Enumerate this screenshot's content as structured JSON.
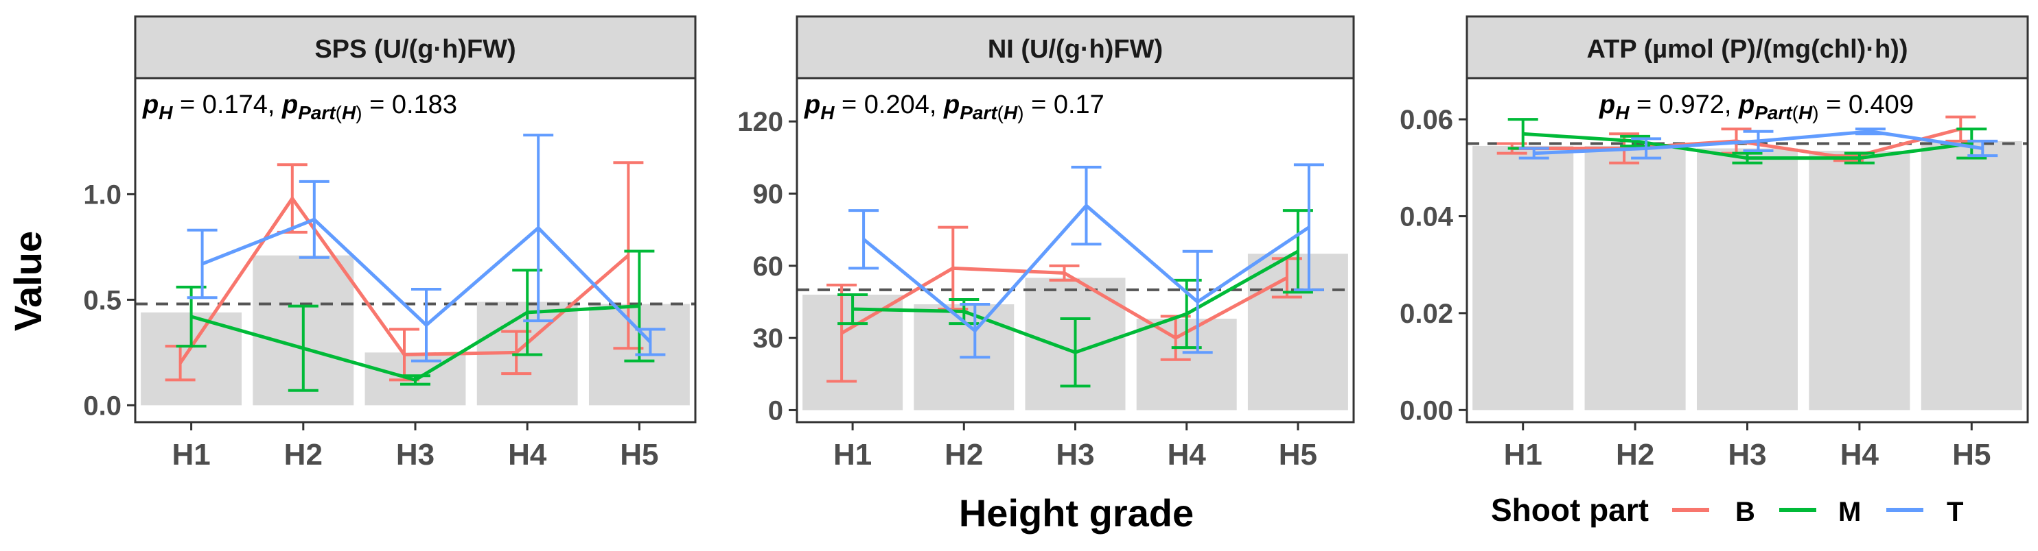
{
  "figure": {
    "ylabel": "Value",
    "xlabel": "Height grade",
    "legend": {
      "title": "Shoot part",
      "items": [
        {
          "label": "B",
          "color": "#F8766D"
        },
        {
          "label": "M",
          "color": "#00BA38"
        },
        {
          "label": "T",
          "color": "#619CFF"
        }
      ]
    },
    "colors": {
      "bar": "#D9D9D9",
      "reference_line": "#555555",
      "strip": "#D9D9D9",
      "axis_text": "#4D4D4D"
    }
  },
  "chart_data": [
    {
      "type": "bar",
      "title": "SPS (U/(g·h)FW)",
      "p_h": "0.174",
      "p_part": "0.183",
      "categories": [
        "H1",
        "H2",
        "H3",
        "H4",
        "H5"
      ],
      "ylim": [
        -0.08,
        1.55
      ],
      "yticks": [
        0.0,
        0.5,
        1.0
      ],
      "ytick_labels": [
        "0.0",
        "0.5",
        "1.0"
      ],
      "reference_line": 0.48,
      "bar_values": [
        0.44,
        0.71,
        0.25,
        0.49,
        0.48
      ],
      "series": [
        {
          "name": "B",
          "values": [
            0.2,
            0.98,
            0.24,
            0.25,
            0.71
          ],
          "errors": [
            0.08,
            0.16,
            0.12,
            0.1,
            0.44
          ]
        },
        {
          "name": "M",
          "values": [
            0.42,
            0.27,
            0.12,
            0.44,
            0.47
          ],
          "errors": [
            0.14,
            0.2,
            0.02,
            0.2,
            0.26
          ]
        },
        {
          "name": "T",
          "values": [
            0.67,
            0.88,
            0.38,
            0.84,
            0.3
          ],
          "errors": [
            0.16,
            0.18,
            0.17,
            0.44,
            0.06
          ]
        }
      ]
    },
    {
      "type": "bar",
      "title": "NI (U/(g·h)FW)",
      "p_h": "0.204",
      "p_part": "0.17",
      "categories": [
        "H1",
        "H2",
        "H3",
        "H4",
        "H5"
      ],
      "ylim": [
        -5,
        138
      ],
      "yticks": [
        0,
        30,
        60,
        90,
        120
      ],
      "ytick_labels": [
        "0",
        "30",
        "60",
        "90",
        "120"
      ],
      "reference_line": 50,
      "bar_values": [
        48,
        44,
        55,
        38,
        65
      ],
      "series": [
        {
          "name": "B",
          "values": [
            32,
            59,
            57,
            30,
            55
          ],
          "errors": [
            20,
            17,
            3,
            9,
            8
          ]
        },
        {
          "name": "M",
          "values": [
            42,
            41,
            24,
            40,
            66
          ],
          "errors": [
            6,
            5,
            14,
            14,
            17
          ]
        },
        {
          "name": "T",
          "values": [
            71,
            33,
            85,
            45,
            76
          ],
          "errors": [
            12,
            11,
            16,
            21,
            26
          ]
        }
      ]
    },
    {
      "type": "bar",
      "title": "ATP (µmol (P)/(mg(chl)·h))",
      "p_h": "0.972",
      "p_part": "0.409",
      "categories": [
        "H1",
        "H2",
        "H3",
        "H4",
        "H5"
      ],
      "ylim": [
        -0.0025,
        0.0685
      ],
      "yticks": [
        0.0,
        0.02,
        0.04,
        0.06
      ],
      "ytick_labels": [
        "0.00",
        "0.02",
        "0.04",
        "0.06"
      ],
      "reference_line": 0.055,
      "bar_values": [
        0.0545,
        0.0545,
        0.054,
        0.0535,
        0.0555
      ],
      "series": [
        {
          "name": "B",
          "values": [
            0.054,
            0.054,
            0.0555,
            0.052,
            0.058
          ],
          "errors": [
            0.001,
            0.003,
            0.0025,
            0.0005,
            0.0025
          ]
        },
        {
          "name": "M",
          "values": [
            0.057,
            0.0555,
            0.052,
            0.052,
            0.055
          ],
          "errors": [
            0.003,
            0.001,
            0.001,
            0.001,
            0.003
          ]
        },
        {
          "name": "T",
          "values": [
            0.053,
            0.054,
            0.0555,
            0.0575,
            0.054
          ],
          "errors": [
            0.001,
            0.002,
            0.002,
            0.0005,
            0.0015
          ]
        }
      ]
    }
  ]
}
